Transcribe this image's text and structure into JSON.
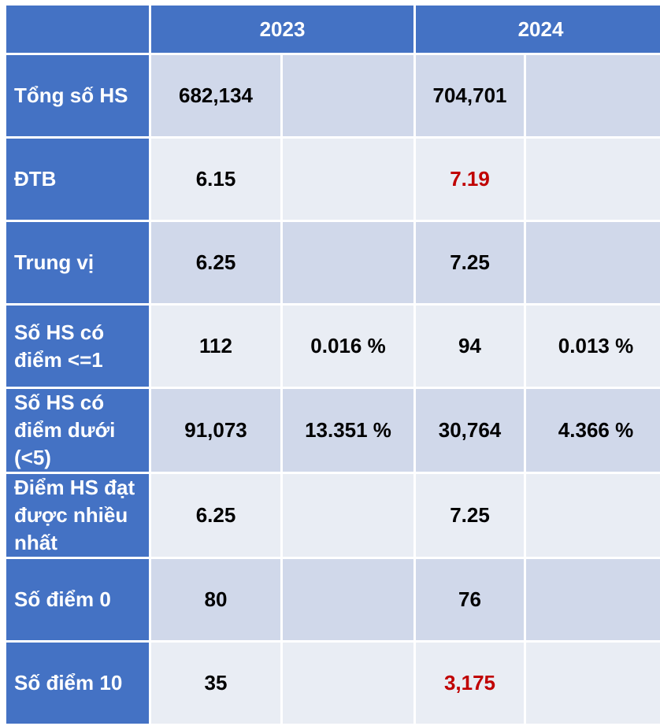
{
  "table": {
    "header": [
      "2023",
      "2024"
    ],
    "highlight_color": "#c00000",
    "rows": [
      {
        "label": "Tổng số HS",
        "cells": [
          "682,134",
          null,
          "704,701",
          null
        ]
      },
      {
        "label": "ĐTB",
        "cells": [
          "6.15",
          null,
          {
            "text": "7.19",
            "highlight": true
          },
          null
        ]
      },
      {
        "label": "Trung vị",
        "cells": [
          "6.25",
          null,
          "7.25",
          null
        ]
      },
      {
        "label": "Số HS có điểm <=1",
        "cells": [
          "112",
          "0.016 %",
          "94",
          "0.013 %"
        ]
      },
      {
        "label": "Số HS có điểm dưới (<5)",
        "cells": [
          "91,073",
          "13.351 %",
          "30,764",
          "4.366 %"
        ]
      },
      {
        "label": "Điểm HS đạt được nhiều nhất",
        "cells": [
          "6.25",
          null,
          "7.25",
          null
        ]
      },
      {
        "label": "Số điểm 0",
        "cells": [
          "80",
          null,
          "76",
          null
        ]
      },
      {
        "label": "Số điểm 10",
        "cells": [
          "35",
          null,
          {
            "text": "3,175",
            "highlight": true
          },
          null
        ]
      }
    ]
  }
}
